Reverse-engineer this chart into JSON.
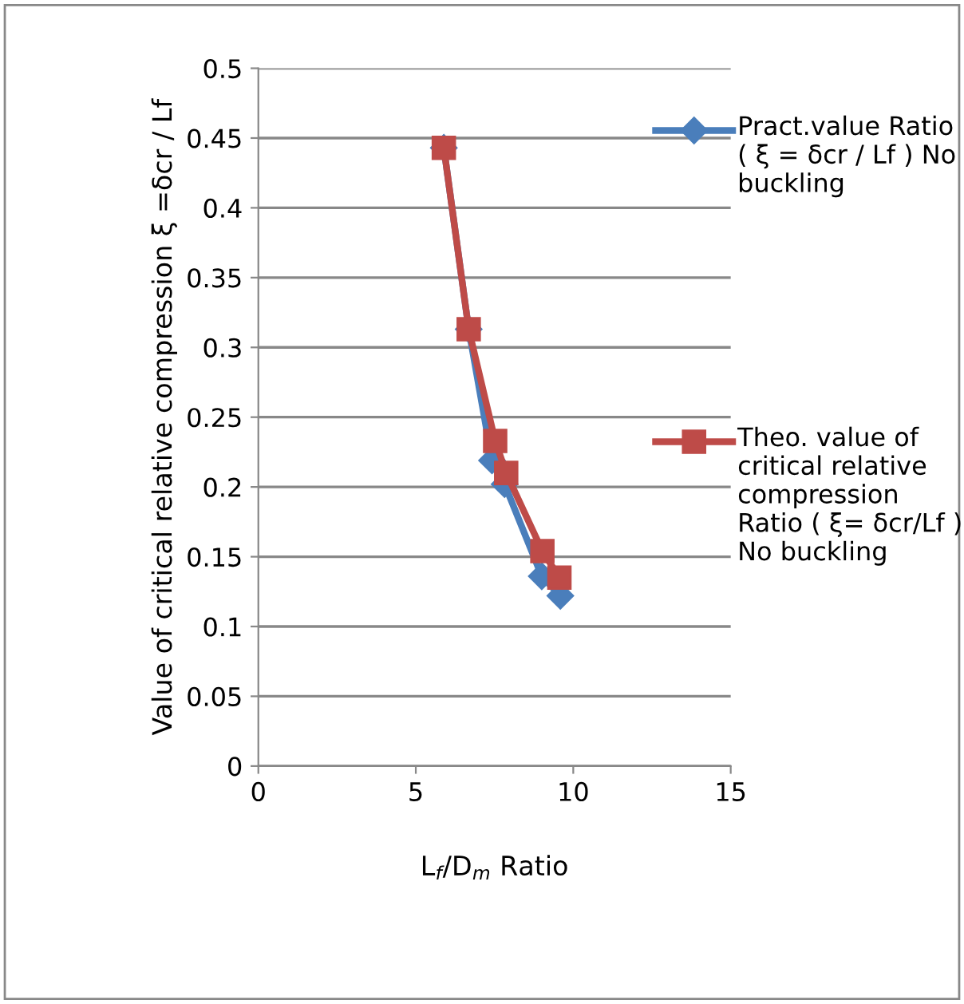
{
  "chart_data": {
    "type": "line",
    "xlabel": "L$_{f}$/D$_{m}$ Ratio",
    "ylabel": "Value of critical relative compression ξ =δcr / Lf",
    "xlim": [
      0,
      15
    ],
    "xticks": [
      0,
      5,
      10,
      15
    ],
    "ylim": [
      0,
      0.5
    ],
    "yticks": [
      0,
      0.05,
      0.1,
      0.15,
      0.2,
      0.25,
      0.3,
      0.35,
      0.4,
      0.45,
      0.5
    ],
    "grid": "y",
    "legend": "right",
    "line_style": "solid",
    "series": [
      {
        "name": "Pract.value Ratio ( ξ = δcr / Lf ) No buckling",
        "color": "#4a7ebb",
        "marker": "diamond",
        "x": [
          5.89,
          6.68,
          7.42,
          7.82,
          9.0,
          9.59
        ],
        "values": [
          0.443,
          0.313,
          0.219,
          0.202,
          0.136,
          0.122
        ]
      },
      {
        "name": "Theo. value of critical relative compression Ratio ( ξ= δcr/Lf ) No buckling",
        "color": "#be4b48",
        "marker": "square",
        "x": [
          5.89,
          6.68,
          7.52,
          7.87,
          9.02,
          9.56
        ],
        "values": [
          0.443,
          0.313,
          0.233,
          0.21,
          0.154,
          0.135
        ]
      }
    ]
  }
}
